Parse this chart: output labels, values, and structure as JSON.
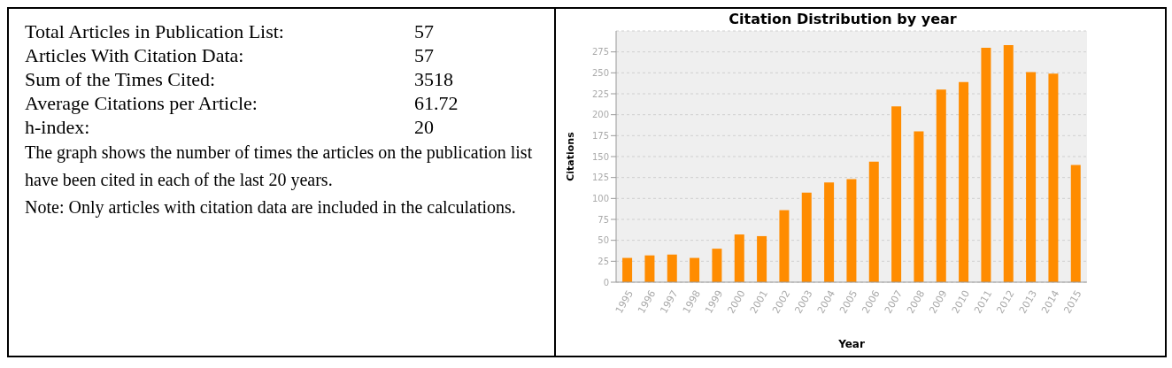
{
  "chart_data": [
    {
      "type": "other",
      "annotations": [
        "Total Articles in Publication List:",
        "57",
        "Articles With Citation Data:",
        "57",
        "Sum of the Times Cited:",
        "3518",
        "Average Citations per Article:",
        "61.72",
        "h-index:",
        "20",
        "The graph shows the number of times the articles on the publication list have been cited in each of the last 20 years.",
        "Note: Only articles with citation data are included in the calculations."
      ]
    },
    {
      "type": "bar",
      "title": "Citation Distribution by year",
      "xlabel": "Year",
      "ylabel": "Citations",
      "categories": [
        "1995",
        "1996",
        "1997",
        "1998",
        "1999",
        "2000",
        "2001",
        "2002",
        "2003",
        "2004",
        "2005",
        "2006",
        "2007",
        "2008",
        "2009",
        "2010",
        "2011",
        "2012",
        "2013",
        "2014",
        "2015"
      ],
      "values": [
        29,
        32,
        33,
        29,
        40,
        57,
        55,
        86,
        107,
        119,
        123,
        144,
        210,
        180,
        230,
        239,
        280,
        283,
        251,
        249,
        140
      ],
      "color": "#ff8c00",
      "ylim": [
        0,
        300
      ],
      "yticks": [
        0,
        25,
        50,
        75,
        100,
        125,
        150,
        175,
        200,
        225,
        250,
        275
      ],
      "grid": "y"
    }
  ]
}
